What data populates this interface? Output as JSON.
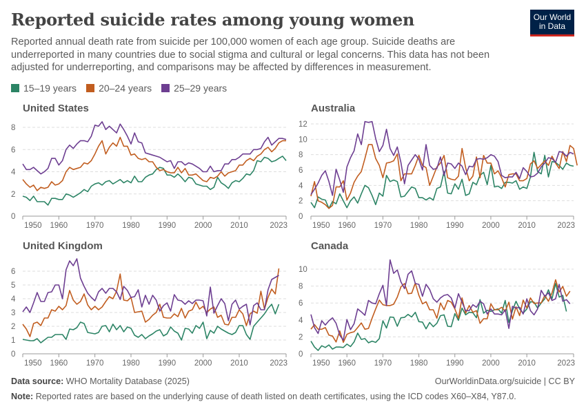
{
  "header": {
    "title": "Reported suicide rates among young women",
    "subtitle": "Reported annual death rate from suicide per 100,000 women of each age group. Suicide deaths are underreported in many countries due to social stigma and cultural or legal concerns. This data has not been adjusted for underreporting, and comparisons may be affected by differences in measurement.",
    "logo": "Our World in Data"
  },
  "legend": [
    {
      "label": "15–19 years",
      "color": "#2c8465"
    },
    {
      "label": "20–24 years",
      "color": "#c15d1f"
    },
    {
      "label": "25–29 years",
      "color": "#6d3e91"
    }
  ],
  "footer": {
    "source_label": "Data source:",
    "source": "WHO Mortality Database (2025)",
    "url": "OurWorldinData.org/suicide | CC BY",
    "note_label": "Note:",
    "note": "Reported rates are based on the underlying cause of death listed on death certificates, using the ICD codes X60–X84, Y87.0."
  },
  "chart_data": [
    {
      "type": "line",
      "title": "United States",
      "first_year": 1950,
      "xlim": [
        1950,
        2023
      ],
      "xticks": [
        "1950",
        "1960",
        "1970",
        "1980",
        "1990",
        "2000",
        "2010",
        "2023"
      ],
      "ylim": [
        0,
        8
      ],
      "yticks": [
        "0",
        "2",
        "4",
        "6",
        "8"
      ],
      "grid": true,
      "series": [
        {
          "name": "15–19 years",
          "values": [
            1.8,
            1.7,
            1.4,
            1.8,
            1.3,
            1.3,
            1.3,
            1.0,
            1.6,
            1.6,
            1.5,
            1.5,
            2.0,
            1.9,
            1.7,
            1.9,
            2.1,
            2.4,
            2.2,
            2.7,
            2.9,
            3.0,
            2.8,
            3.1,
            3.2,
            2.9,
            3.1,
            3.3,
            3.0,
            3.2,
            3.0,
            3.6,
            3.1,
            3.1,
            3.5,
            3.7,
            3.8,
            4.2,
            4.4,
            4.3,
            3.7,
            3.7,
            3.5,
            3.8,
            3.5,
            3.1,
            3.5,
            3.4,
            2.9,
            2.8,
            2.7,
            2.7,
            2.4,
            2.6,
            3.5,
            3.0,
            2.8,
            2.5,
            3.0,
            3.2,
            3.1,
            3.4,
            3.8,
            3.7,
            4.1,
            5.0,
            4.9,
            5.3,
            5.2,
            4.9,
            5.0,
            5.2,
            5.4,
            5.0
          ]
        },
        {
          "name": "20–24 years",
          "values": [
            3.3,
            2.9,
            2.6,
            2.8,
            2.3,
            2.6,
            2.5,
            2.6,
            3.1,
            2.8,
            2.9,
            3.2,
            4.0,
            4.4,
            4.2,
            4.3,
            4.4,
            4.8,
            4.7,
            5.0,
            5.6,
            6.3,
            6.8,
            5.6,
            6.2,
            6.6,
            6.3,
            7.1,
            6.3,
            6.3,
            5.5,
            5.6,
            5.2,
            5.1,
            5.2,
            4.9,
            4.9,
            4.4,
            4.1,
            4.2,
            4.0,
            3.9,
            3.9,
            4.4,
            3.9,
            4.3,
            3.7,
            3.7,
            3.8,
            3.5,
            3.2,
            3.1,
            3.5,
            3.4,
            3.6,
            4.0,
            3.6,
            3.9,
            4.0,
            4.1,
            4.6,
            4.6,
            5.0,
            5.2,
            5.0,
            5.4,
            5.6,
            6.0,
            6.2,
            5.8,
            6.1,
            6.6,
            6.8,
            6.8
          ]
        },
        {
          "name": "25–29 years",
          "values": [
            4.7,
            4.2,
            4.2,
            4.4,
            4.1,
            3.8,
            4.0,
            4.3,
            5.2,
            5.2,
            4.6,
            5.0,
            6.0,
            6.4,
            6.1,
            6.5,
            6.8,
            6.8,
            6.7,
            7.2,
            8.2,
            8.1,
            8.5,
            7.8,
            8.1,
            7.8,
            7.5,
            8.3,
            7.8,
            7.2,
            6.5,
            7.5,
            6.7,
            6.6,
            5.7,
            5.6,
            5.5,
            5.4,
            5.3,
            5.1,
            4.9,
            5.0,
            4.3,
            4.9,
            4.9,
            4.6,
            4.8,
            4.7,
            4.5,
            4.3,
            4.0,
            4.0,
            4.5,
            4.0,
            4.1,
            4.1,
            4.7,
            4.7,
            5.1,
            5.1,
            5.3,
            5.6,
            5.6,
            5.6,
            6.0,
            6.0,
            6.1,
            6.7,
            7.1,
            6.4,
            6.7,
            7.0,
            7.0,
            6.9
          ]
        }
      ]
    },
    {
      "type": "line",
      "title": "Australia",
      "first_year": 1950,
      "xlim": [
        1950,
        2023
      ],
      "xticks": [
        "1950",
        "1960",
        "1970",
        "1980",
        "1990",
        "2000",
        "2010",
        "2023"
      ],
      "ylim": [
        0,
        12
      ],
      "yticks": [
        "0",
        "2",
        "4",
        "6",
        "8",
        "10",
        "12"
      ],
      "grid": true,
      "series": [
        {
          "name": "15–19 years",
          "values": [
            1.8,
            1.1,
            2.5,
            2.2,
            2.1,
            1.0,
            1.9,
            1.6,
            2.9,
            2.0,
            1.1,
            2.0,
            2.5,
            1.7,
            2.9,
            4.0,
            3.7,
            2.7,
            1.5,
            3.0,
            2.6,
            5.3,
            4.5,
            4.7,
            4.5,
            2.5,
            2.6,
            3.2,
            3.8,
            3.6,
            2.4,
            2.4,
            2.1,
            2.4,
            2.1,
            3.6,
            3.8,
            5.8,
            3.0,
            2.9,
            4.2,
            3.5,
            4.8,
            2.7,
            2.9,
            4.4,
            4.1,
            5.3,
            5.7,
            4.1,
            6.6,
            3.8,
            3.9,
            3.6,
            4.4,
            4.4,
            4.3,
            4.6,
            3.5,
            3.8,
            3.6,
            5.1,
            8.3,
            5.8,
            5.5,
            7.9,
            5.1,
            7.1,
            7.0,
            6.6,
            6.1,
            6.9,
            6.6,
            6.5
          ]
        },
        {
          "name": "20–24 years",
          "values": [
            2.6,
            4.5,
            2.0,
            1.8,
            1.5,
            1.0,
            1.4,
            3.8,
            3.8,
            4.6,
            2.1,
            3.0,
            4.4,
            5.2,
            5.8,
            7.5,
            9.3,
            9.3,
            7.5,
            6.6,
            5.0,
            6.9,
            7.0,
            7.2,
            8.1,
            4.6,
            5.5,
            5.5,
            5.5,
            6.6,
            7.9,
            6.6,
            6.3,
            4.0,
            5.2,
            6.4,
            6.9,
            7.9,
            5.0,
            4.8,
            4.7,
            5.2,
            8.8,
            6.3,
            4.6,
            5.2,
            7.7,
            5.0,
            7.9,
            6.9,
            6.9,
            5.5,
            5.9,
            5.0,
            3.8,
            5.4,
            5.5,
            5.5,
            4.6,
            4.6,
            4.9,
            6.8,
            7.2,
            6.2,
            6.7,
            7.2,
            6.6,
            7.8,
            6.9,
            6.2,
            8.4,
            7.1,
            9.2,
            8.8,
            6.6
          ]
        },
        {
          "name": "25–29 years",
          "values": [
            2.8,
            3.5,
            4.3,
            5.3,
            5.9,
            4.5,
            2.7,
            6.1,
            4.7,
            3.1,
            6.4,
            7.6,
            8.5,
            10.7,
            9.3,
            12.3,
            12.2,
            12.3,
            10.1,
            8.4,
            9.2,
            11.3,
            8.8,
            7.9,
            9.0,
            7.0,
            4.2,
            6.6,
            7.3,
            8.0,
            7.4,
            6.0,
            9.3,
            6.6,
            6.1,
            6.2,
            7.7,
            5.3,
            6.9,
            6.8,
            6.2,
            6.9,
            6.5,
            5.4,
            6.5,
            6.4,
            7.4,
            7.5,
            7.4,
            7.6,
            8.0,
            7.8,
            7.1,
            5.3,
            5.0,
            5.1,
            5.1,
            5.7,
            4.9,
            6.3,
            5.8,
            5.1,
            5.2,
            5.6,
            6.4,
            6.9,
            7.6,
            7.5,
            7.0,
            8.4,
            8.3,
            7.8,
            8.3,
            8.1
          ]
        }
      ]
    },
    {
      "type": "line",
      "title": "United Kingdom",
      "first_year": 1950,
      "xlim": [
        1950,
        2023
      ],
      "xticks": [
        "1950",
        "1960",
        "1970",
        "1980",
        "1990",
        "2000",
        "2010",
        "2023"
      ],
      "ylim": [
        0,
        6
      ],
      "yticks": [
        "0",
        "1",
        "2",
        "3",
        "4",
        "5",
        "6"
      ],
      "grid": true,
      "series": [
        {
          "name": "15–19 years",
          "values": [
            1.05,
            1.0,
            0.95,
            0.95,
            1.1,
            0.8,
            1.0,
            1.2,
            1.2,
            1.4,
            1.4,
            1.4,
            1.05,
            1.8,
            1.75,
            1.9,
            2.3,
            2.2,
            1.55,
            1.5,
            1.45,
            1.55,
            2.0,
            2.05,
            1.6,
            2.15,
            1.75,
            2.05,
            1.6,
            1.95,
            1.85,
            1.35,
            1.2,
            1.4,
            1.1,
            1.3,
            1.45,
            1.65,
            1.75,
            1.3,
            1.45,
            1.95,
            1.65,
            1.5,
            1.0,
            1.85,
            1.8,
            1.5,
            2.05,
            1.85,
            2.3,
            1.1,
            1.7,
            1.5,
            2.0,
            1.8,
            1.65,
            1.5,
            1.4,
            1.55,
            2.05,
            2.05,
            1.4,
            1.05,
            2.0,
            2.3,
            2.6,
            2.9,
            3.3,
            3.6,
            2.9,
            3.6
          ]
        },
        {
          "name": "20–24 years",
          "values": [
            2.15,
            1.8,
            1.25,
            2.2,
            2.3,
            2.05,
            2.6,
            2.6,
            3.2,
            3.1,
            3.45,
            3.2,
            3.5,
            4.6,
            3.9,
            3.6,
            3.8,
            4.35,
            3.55,
            3.2,
            3.45,
            3.2,
            3.4,
            3.8,
            4.15,
            4.0,
            4.55,
            5.8,
            3.9,
            3.85,
            4.1,
            3.0,
            3.05,
            3.1,
            2.3,
            2.5,
            2.8,
            3.0,
            3.6,
            2.65,
            2.6,
            2.6,
            2.9,
            2.7,
            3.3,
            2.6,
            3.1,
            3.2,
            3.75,
            3.25,
            3.45,
            3.0,
            3.25,
            3.4,
            2.65,
            2.8,
            2.15,
            2.1,
            2.65,
            2.65,
            3.2,
            2.9,
            2.05,
            2.9,
            3.1,
            2.95,
            4.55,
            3.25,
            4.1,
            4.7,
            4.35,
            6.2
          ]
        },
        {
          "name": "25–29 years",
          "values": [
            3.05,
            3.4,
            3.0,
            3.7,
            4.45,
            3.8,
            3.8,
            4.45,
            4.5,
            5.0,
            5.0,
            4.0,
            6.1,
            6.75,
            6.4,
            6.9,
            5.5,
            4.9,
            4.4,
            4.1,
            3.85,
            4.5,
            4.75,
            4.4,
            4.75,
            4.75,
            4.5,
            3.95,
            4.9,
            4.6,
            4.1,
            4.15,
            4.65,
            3.4,
            4.25,
            3.6,
            4.25,
            3.9,
            3.1,
            3.5,
            3.7,
            3.1,
            4.3,
            3.9,
            3.85,
            3.6,
            3.85,
            3.65,
            3.9,
            3.9,
            3.85,
            2.75,
            4.85,
            2.95,
            3.5,
            4.0,
            3.65,
            2.4,
            3.6,
            3.9,
            3.25,
            3.45,
            3.6,
            2.1,
            3.5,
            3.7,
            3.2,
            3.2,
            4.65,
            5.4,
            5.55,
            5.7
          ]
        }
      ]
    },
    {
      "type": "line",
      "title": "Canada",
      "first_year": 1950,
      "xlim": [
        1950,
        2023
      ],
      "xticks": [
        "1950",
        "1960",
        "1970",
        "1980",
        "1990",
        "2000",
        "2010",
        "2023"
      ],
      "ylim": [
        0,
        10
      ],
      "yticks": [
        "0",
        "2",
        "4",
        "6",
        "8",
        "10"
      ],
      "grid": true,
      "series": [
        {
          "name": "15–19 years",
          "values": [
            1.5,
            0.8,
            0.4,
            0.95,
            0.75,
            1.05,
            0.55,
            0.8,
            0.8,
            0.75,
            1.15,
            0.85,
            1.4,
            2.45,
            1.7,
            1.8,
            1.3,
            1.5,
            1.35,
            1.8,
            3.9,
            3.05,
            4.35,
            4.3,
            3.25,
            4.25,
            4.3,
            4.65,
            4.35,
            4.9,
            3.8,
            3.75,
            2.95,
            3.7,
            3.2,
            3.6,
            4.5,
            4.6,
            3.25,
            3.2,
            4.75,
            3.95,
            5.4,
            4.6,
            4.9,
            4.85,
            4.25,
            6.4,
            4.8,
            5.15,
            5.0,
            5.2,
            5.3,
            4.8,
            6.3,
            3.7,
            5.1,
            6.2,
            5.3,
            4.8,
            5.3,
            6.15,
            6.1,
            5.4,
            6.0,
            6.5,
            7.55,
            6.5,
            8.3,
            6.7,
            6.9,
            5.0
          ]
        },
        {
          "name": "20–24 years",
          "values": [
            2.9,
            3.45,
            2.9,
            2.9,
            3.1,
            2.2,
            2.1,
            1.4,
            2.7,
            1.35,
            2.3,
            2.5,
            2.6,
            3.1,
            3.65,
            2.9,
            3.0,
            4.2,
            5.3,
            6.35,
            5.8,
            5.7,
            5.7,
            5.85,
            6.7,
            7.9,
            8.3,
            7.1,
            7.15,
            8.35,
            6.9,
            5.9,
            6.15,
            5.2,
            5.2,
            4.2,
            6.0,
            5.2,
            6.3,
            6.1,
            5.3,
            4.2,
            6.6,
            4.8,
            5.7,
            4.9,
            5.1,
            3.6,
            4.15,
            4.15,
            5.9,
            5.2,
            5.2,
            5.5,
            5.0,
            6.1,
            4.1,
            5.55,
            4.5,
            6.35,
            5.4,
            6.6,
            5.95,
            6.0,
            6.0,
            6.9,
            6.2,
            7.2,
            8.75,
            7.3,
            7.95,
            6.8,
            7.4
          ]
        },
        {
          "name": "25–29 years",
          "values": [
            4.65,
            3.1,
            2.4,
            3.9,
            3.4,
            3.9,
            4.25,
            3.6,
            2.2,
            1.6,
            4.05,
            2.85,
            3.55,
            5.3,
            4.95,
            4.55,
            6.3,
            6.0,
            5.9,
            7.1,
            8.1,
            5.7,
            11.1,
            9.5,
            9.9,
            8.5,
            7.7,
            9.4,
            9.8,
            8.3,
            8.2,
            6.8,
            8.2,
            7.6,
            6.5,
            6.1,
            6.6,
            6.9,
            7.0,
            6.6,
            5.4,
            7.1,
            6.1,
            5.1,
            5.1,
            5.8,
            5.5,
            6.2,
            5.9,
            4.7,
            5.3,
            4.7,
            4.7,
            4.6,
            5.2,
            3.0,
            5.6,
            5.4,
            5.5,
            4.7,
            6.5,
            5.1,
            4.6,
            5.3,
            7.5,
            6.8,
            7.2,
            6.3,
            6.5,
            8.2,
            6.2,
            6.4,
            5.9
          ]
        }
      ]
    }
  ]
}
